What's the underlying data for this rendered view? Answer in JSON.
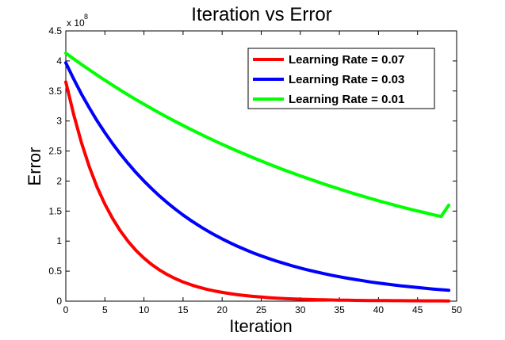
{
  "chart_data": {
    "type": "line",
    "title": "Iteration vs Error",
    "xlabel": "Iteration",
    "ylabel": "Error",
    "xlim": [
      0,
      50
    ],
    "ylim": [
      0,
      450000000
    ],
    "xticks": [
      0,
      5,
      10,
      15,
      20,
      25,
      30,
      35,
      40,
      45,
      50
    ],
    "yticks": [
      0,
      0.5,
      1,
      1.5,
      2,
      2.5,
      3,
      3.5,
      4,
      4.5
    ],
    "y_exponent_label": "x 10",
    "y_exponent": "8",
    "grid": false,
    "legend_position": "top-right",
    "x": [
      0,
      1,
      2,
      3,
      4,
      5,
      6,
      7,
      8,
      9,
      10,
      11,
      12,
      13,
      14,
      15,
      16,
      17,
      18,
      19,
      20,
      21,
      22,
      23,
      24,
      25,
      26,
      27,
      28,
      29,
      30,
      31,
      32,
      33,
      34,
      35,
      36,
      37,
      38,
      39,
      40,
      41,
      42,
      43,
      44,
      45,
      46,
      47,
      48,
      49
    ],
    "series": [
      {
        "name": "Learning Rate = 0.07",
        "color": "#ff0000",
        "values": [
          365000000,
          311000000,
          264000000,
          224000000,
          190000000,
          161500000,
          137200000,
          116600000,
          99100000,
          84200000,
          71600000,
          60900000,
          51800000,
          44100000,
          37600000,
          32000000,
          27300000,
          23300000,
          19900000,
          17000000,
          14600000,
          12500000,
          10700000,
          9200000,
          7900000,
          6800000,
          5850000,
          5050000,
          4370000,
          3790000,
          3300000,
          2880000,
          2520000,
          2210000,
          1950000,
          1720000,
          1530000,
          1360000,
          1210000,
          1090000,
          980000,
          880000,
          800000,
          730000,
          670000,
          610000,
          560000,
          520000,
          480000,
          450000
        ]
      },
      {
        "name": "Learning Rate = 0.03",
        "color": "#0000ff",
        "values": [
          397000000,
          370000000,
          345000000,
          322000000,
          300500000,
          280500000,
          262000000,
          244800000,
          228800000,
          213900000,
          200000000,
          187100000,
          175000000,
          163800000,
          153300000,
          143500000,
          134400000,
          125900000,
          118000000,
          110600000,
          103700000,
          97200000,
          91200000,
          85600000,
          80300000,
          75400000,
          70800000,
          66500000,
          62500000,
          58700000,
          55200000,
          51900000,
          48800000,
          45900000,
          43200000,
          40700000,
          38300000,
          36100000,
          34000000,
          32000000,
          30200000,
          28500000,
          26900000,
          25400000,
          24000000,
          22700000,
          21400000,
          20200000,
          19100000,
          18100000
        ]
      },
      {
        "name": "Learning Rate = 0.01",
        "color": "#00ff00",
        "values": [
          413000000,
          403500000,
          394300000,
          385300000,
          376500000,
          367900000,
          359500000,
          351300000,
          343300000,
          335500000,
          327900000,
          320500000,
          313300000,
          306200000,
          299300000,
          292600000,
          286000000,
          279600000,
          273300000,
          267200000,
          261200000,
          255400000,
          249700000,
          244100000,
          238700000,
          233400000,
          228200000,
          223100000,
          218200000,
          213400000,
          208700000,
          204100000,
          199600000,
          195200000,
          190900000,
          186700000,
          182600000,
          178600000,
          174700000,
          170900000,
          167200000,
          163600000,
          160100000,
          156700000,
          153400000,
          150200000,
          147100000,
          144000000,
          141000000,
          160000000
        ]
      }
    ]
  }
}
